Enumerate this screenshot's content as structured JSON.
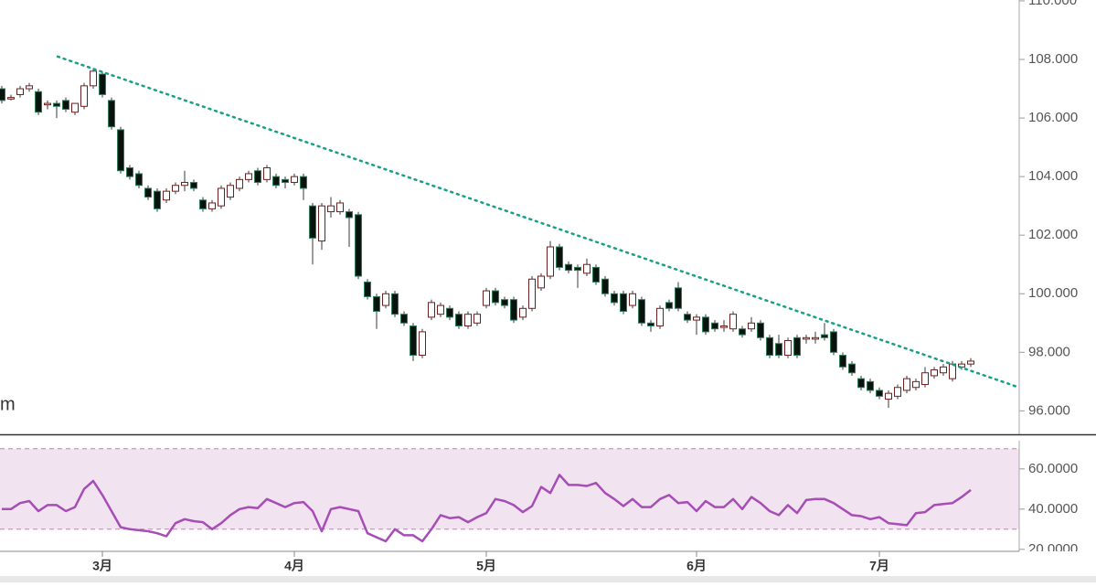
{
  "chart_data": [
    {
      "type": "candlestick",
      "annotation": "m",
      "categories": [
        null,
        null,
        null,
        null,
        null,
        null,
        null,
        null,
        null,
        null,
        null,
        "3月",
        null,
        null,
        null,
        null,
        null,
        null,
        null,
        null,
        null,
        null,
        null,
        null,
        null,
        null,
        null,
        null,
        null,
        null,
        null,
        null,
        "4月",
        null,
        null,
        null,
        null,
        null,
        null,
        null,
        null,
        null,
        null,
        null,
        null,
        null,
        null,
        null,
        null,
        null,
        null,
        null,
        null,
        "5月",
        null,
        null,
        null,
        null,
        null,
        null,
        null,
        null,
        null,
        null,
        null,
        null,
        null,
        null,
        null,
        null,
        null,
        null,
        null,
        null,
        null,
        null,
        "6月",
        null,
        null,
        null,
        null,
        null,
        null,
        null,
        null,
        null,
        null,
        null,
        null,
        null,
        null,
        null,
        null,
        null,
        null,
        null,
        "7月",
        null,
        null,
        null,
        null,
        null,
        null,
        null,
        null,
        null,
        null
      ],
      "open": [
        107.0,
        106.65,
        106.8,
        107.0,
        106.9,
        106.45,
        106.5,
        106.6,
        106.2,
        106.4,
        107.1,
        107.5,
        106.6,
        105.6,
        104.3,
        104.1,
        103.6,
        103.5,
        103.2,
        103.5,
        103.7,
        103.8,
        103.2,
        102.9,
        103.0,
        103.3,
        103.6,
        103.9,
        104.2,
        103.9,
        104.0,
        103.9,
        103.8,
        104.0,
        103.0,
        101.8,
        102.8,
        102.8,
        102.8,
        102.7,
        100.4,
        99.9,
        99.6,
        100.0,
        99.3,
        98.9,
        97.9,
        99.2,
        99.3,
        99.5,
        99.3,
        98.9,
        99.0,
        99.6,
        100.1,
        99.8,
        99.8,
        99.2,
        99.5,
        100.2,
        100.6,
        101.6,
        101.0,
        100.9,
        100.7,
        100.9,
        100.5,
        100.0,
        100.0,
        99.6,
        99.8,
        99.0,
        98.9,
        99.7,
        100.2,
        99.3,
        99.1,
        99.2,
        99.0,
        98.85,
        98.8,
        98.8,
        98.8,
        99.0,
        98.5,
        98.3,
        97.9,
        98.5,
        98.45,
        98.45,
        98.6,
        98.7,
        97.9,
        97.6,
        97.1,
        97.0,
        96.7,
        96.4,
        96.5,
        96.7,
        96.8,
        96.9,
        97.2,
        97.3,
        97.1,
        97.5,
        97.6
      ],
      "high": [
        107.1,
        106.8,
        107.1,
        107.2,
        107.0,
        106.6,
        106.6,
        106.7,
        106.5,
        107.2,
        107.7,
        107.6,
        106.7,
        105.7,
        104.4,
        104.2,
        103.7,
        103.6,
        103.6,
        103.8,
        104.2,
        103.9,
        103.3,
        103.2,
        103.7,
        103.8,
        104.0,
        104.2,
        104.3,
        104.4,
        104.1,
        104.0,
        104.1,
        104.1,
        103.1,
        103.1,
        103.3,
        103.2,
        102.9,
        102.8,
        100.5,
        100.0,
        100.1,
        100.1,
        99.4,
        99.0,
        98.8,
        99.8,
        99.7,
        99.6,
        99.4,
        99.4,
        99.4,
        100.2,
        100.2,
        99.9,
        99.9,
        99.6,
        100.6,
        100.7,
        101.8,
        101.7,
        101.1,
        101.0,
        101.2,
        101.0,
        100.6,
        100.1,
        100.1,
        100.1,
        99.9,
        99.1,
        99.6,
        99.8,
        100.4,
        99.4,
        99.3,
        99.3,
        99.1,
        99.1,
        99.4,
        98.9,
        99.2,
        99.1,
        98.6,
        98.6,
        98.5,
        98.6,
        98.6,
        98.7,
        99.0,
        98.8,
        98.0,
        97.7,
        97.2,
        97.1,
        96.8,
        96.7,
        96.9,
        97.2,
        97.1,
        97.5,
        97.5,
        97.6,
        97.7,
        97.7,
        97.8
      ],
      "low": [
        106.5,
        106.6,
        106.7,
        106.9,
        106.1,
        106.3,
        106.0,
        106.2,
        106.1,
        106.3,
        107.0,
        106.7,
        105.6,
        104.1,
        103.9,
        103.6,
        103.2,
        102.8,
        103.1,
        103.4,
        103.5,
        103.5,
        102.8,
        102.8,
        102.9,
        103.2,
        103.5,
        103.8,
        103.7,
        103.8,
        103.6,
        103.6,
        103.7,
        103.2,
        101.0,
        101.5,
        102.6,
        102.7,
        101.6,
        100.5,
        99.8,
        98.8,
        99.5,
        99.2,
        98.9,
        97.7,
        97.8,
        99.1,
        99.2,
        99.1,
        98.8,
        98.8,
        98.9,
        99.5,
        99.6,
        99.5,
        99.0,
        99.1,
        99.4,
        100.1,
        100.5,
        100.8,
        100.7,
        100.2,
        100.6,
        100.3,
        99.9,
        99.6,
        99.3,
        99.5,
        98.9,
        98.7,
        98.8,
        99.4,
        99.4,
        99.0,
        98.6,
        98.6,
        98.7,
        98.7,
        98.7,
        98.5,
        98.7,
        98.4,
        97.8,
        97.8,
        97.8,
        97.8,
        98.3,
        98.3,
        98.4,
        97.9,
        97.4,
        97.2,
        96.7,
        96.6,
        96.4,
        96.1,
        96.4,
        96.6,
        96.7,
        96.8,
        97.1,
        97.2,
        97.0,
        97.4,
        97.5
      ],
      "close": [
        106.6,
        106.7,
        107.0,
        107.1,
        106.2,
        106.5,
        106.4,
        106.3,
        106.5,
        107.1,
        107.6,
        106.8,
        105.7,
        104.2,
        104.0,
        103.7,
        103.3,
        102.9,
        103.5,
        103.7,
        103.8,
        103.6,
        102.9,
        103.1,
        103.6,
        103.7,
        103.9,
        104.1,
        103.8,
        104.3,
        103.7,
        103.8,
        104.0,
        103.6,
        101.9,
        103.0,
        103.0,
        103.1,
        102.6,
        100.6,
        99.9,
        99.4,
        100.0,
        99.3,
        99.0,
        97.9,
        98.7,
        99.7,
        99.6,
        99.2,
        98.9,
        99.3,
        99.3,
        100.1,
        99.7,
        99.6,
        99.1,
        99.5,
        100.5,
        100.6,
        101.6,
        100.9,
        100.8,
        100.8,
        101.0,
        100.4,
        100.0,
        99.7,
        99.4,
        100.0,
        99.0,
        98.9,
        99.5,
        99.5,
        99.5,
        99.1,
        99.2,
        98.7,
        98.8,
        98.9,
        99.3,
        98.6,
        99.0,
        98.5,
        97.9,
        97.9,
        98.4,
        97.9,
        98.5,
        98.5,
        98.5,
        98.0,
        97.5,
        97.3,
        96.8,
        96.7,
        96.5,
        96.6,
        96.8,
        97.1,
        97.0,
        97.3,
        97.4,
        97.5,
        97.6,
        97.6,
        97.7
      ],
      "up_fill": "#ffffff",
      "up_stroke": "#6b1f1f",
      "down_fill": "#07140e",
      "down_stroke": "#2e7d5e",
      "wick_color": "#3a3a3a",
      "trendline": {
        "x": [
          6.1,
          111.3
        ],
        "y": [
          108.1,
          96.8
        ],
        "color": "#17a085"
      },
      "ylim": [
        95.2,
        110.03
      ],
      "yticks": [
        {
          "value": 96,
          "label": "96.000"
        },
        {
          "value": 98,
          "label": "98.000"
        },
        {
          "value": 100,
          "label": "100.000"
        },
        {
          "value": 102,
          "label": "102.000"
        },
        {
          "value": 104,
          "label": "104.000"
        },
        {
          "value": 106,
          "label": "106.000"
        },
        {
          "value": 108,
          "label": "108.000"
        },
        {
          "value": 110,
          "label": "110.000"
        }
      ]
    },
    {
      "type": "line",
      "values": [
        40,
        40,
        43,
        44,
        39,
        42,
        42,
        39,
        41,
        50,
        54,
        47,
        39,
        31,
        30,
        29.5,
        29,
        28,
        26.5,
        33,
        35,
        34,
        33.5,
        30,
        33,
        37,
        40,
        41,
        40.5,
        45,
        43,
        41,
        43,
        43.5,
        39,
        29,
        40,
        41,
        40,
        39,
        28,
        26,
        24,
        30,
        27,
        27,
        24,
        30,
        37,
        35.5,
        36,
        33.5,
        36,
        38,
        45,
        44,
        42,
        38.5,
        41.5,
        51,
        48,
        57,
        52,
        52,
        51.5,
        53,
        48,
        45,
        41.5,
        45,
        41,
        41,
        45,
        47,
        43,
        43.5,
        39,
        44,
        41,
        41,
        45,
        40,
        46,
        43,
        39,
        37,
        42,
        38,
        44.5,
        45,
        45,
        43,
        40,
        37,
        36.5,
        35,
        36,
        33,
        32.5,
        32,
        38,
        38.5,
        42,
        42.5,
        43,
        46,
        49.5
      ],
      "color": "#a64db6",
      "band": [
        30,
        70
      ],
      "band_color": "#f2e3f1",
      "ylim": [
        19,
        74
      ],
      "yticks": [
        {
          "value": 20,
          "label": "20.0000"
        },
        {
          "value": 40,
          "label": "40.0000"
        },
        {
          "value": 60,
          "label": "60.0000"
        }
      ]
    }
  ]
}
